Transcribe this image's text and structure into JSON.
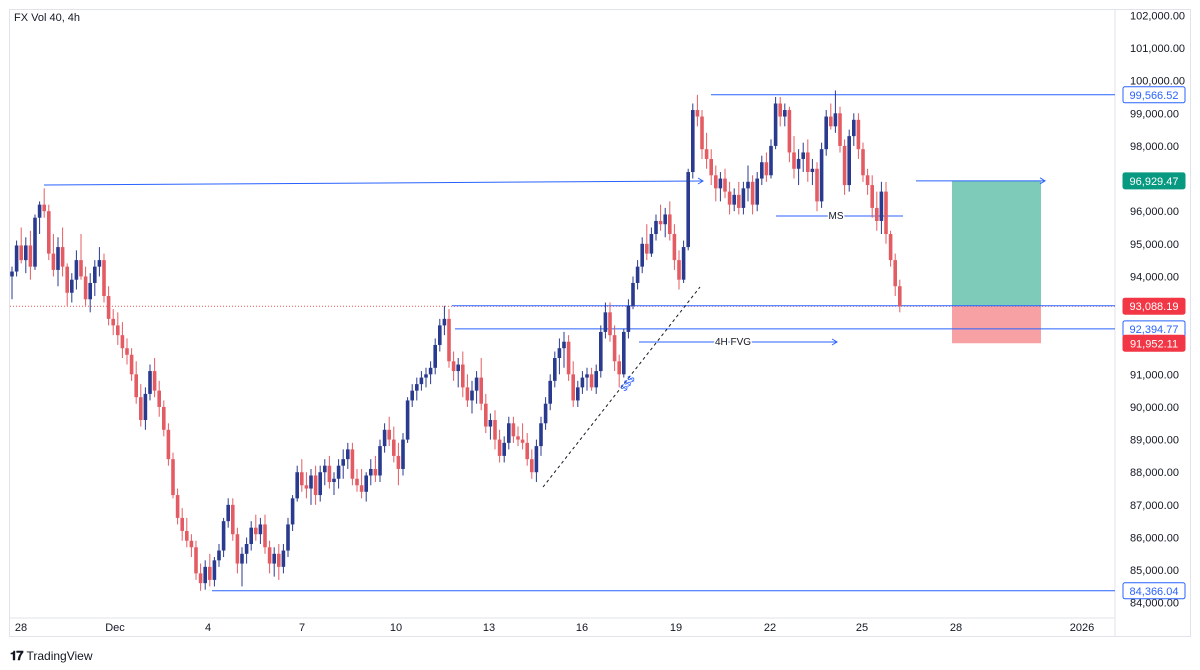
{
  "header": {
    "title": "FX Vol 40, 4h"
  },
  "branding": {
    "logo_icon": "tradingview-logo-icon",
    "label": "TradingView"
  },
  "chart_data": {
    "type": "candlestick",
    "title": "FX Vol 40, 4h",
    "ylim": [
      84000,
      102000
    ],
    "y_ticks": [
      84000,
      85000,
      86000,
      87000,
      88000,
      89000,
      90000,
      91000,
      92000,
      93000,
      94000,
      95000,
      96000,
      97000,
      98000,
      99000,
      100000,
      101000,
      102000
    ],
    "y_tick_labels": [
      "84,000.00",
      "85,000.00",
      "86,000.00",
      "87,000.00",
      "88,000.00",
      "89,000.00",
      "90,000.00",
      "91,000.00",
      "92,000.00",
      "93,000.00",
      "94,000.00",
      "95,000.00",
      "96,000.00",
      "97,000.00",
      "98,000.00",
      "99,000.00",
      "100,000.00",
      "101,000.00",
      "102,000.00"
    ],
    "x_tick_labels": [
      "28",
      "Dec",
      "4",
      "7",
      "10",
      "13",
      "16",
      "19",
      "22",
      "25",
      "28",
      "2026"
    ],
    "colors": {
      "up": "#2a3a8f",
      "down": "#e45c63",
      "hline": "#2962ff",
      "target_zone": "#7fcbba",
      "stop_zone": "#f7a1a4",
      "current_price_line": "#ef5350"
    },
    "price_tags": [
      {
        "value": 99566.52,
        "label": "99,566.52",
        "style": "blue-outline"
      },
      {
        "value": 96929.47,
        "label": "96,929.47",
        "style": "green"
      },
      {
        "value": 93088.19,
        "label": "93,088.19",
        "style": "red"
      },
      {
        "value": 92394.77,
        "label": "92,394.77",
        "style": "blue-outline"
      },
      {
        "value": 91952.11,
        "label": "91,952.11",
        "style": "red"
      },
      {
        "value": 84366.04,
        "label": "84,366.04",
        "style": "blue-outline"
      }
    ],
    "annotations": [
      {
        "text": "MS"
      },
      {
        "text": "4H FVG"
      },
      {
        "text": "$$$"
      }
    ],
    "position": {
      "entry": 93088.19,
      "target": 96929.47,
      "stop": 91952.11
    },
    "candles": [
      [
        94000,
        94300,
        93300,
        94150
      ],
      [
        94150,
        95100,
        94000,
        94950
      ],
      [
        94950,
        95500,
        94400,
        94500
      ],
      [
        94500,
        95200,
        94100,
        94950
      ],
      [
        94950,
        95400,
        93900,
        94300
      ],
      [
        94300,
        95900,
        94200,
        95800
      ],
      [
        95800,
        96300,
        95300,
        96200
      ],
      [
        96200,
        96700,
        95800,
        96000
      ],
      [
        96000,
        96200,
        94500,
        94700
      ],
      [
        94700,
        95300,
        94000,
        94200
      ],
      [
        94200,
        95200,
        93700,
        94900
      ],
      [
        94900,
        95500,
        94000,
        94300
      ],
      [
        94300,
        94400,
        93100,
        93500
      ],
      [
        93500,
        94100,
        93200,
        93900
      ],
      [
        93900,
        94800,
        93600,
        94500
      ],
      [
        94500,
        95300,
        93900,
        94000
      ],
      [
        94000,
        94300,
        93100,
        93300
      ],
      [
        93300,
        94100,
        92900,
        93800
      ],
      [
        93800,
        94500,
        93400,
        94300
      ],
      [
        94300,
        94900,
        94000,
        94500
      ],
      [
        94500,
        94700,
        93200,
        93400
      ],
      [
        93400,
        93700,
        92500,
        92700
      ],
      [
        92700,
        93000,
        92200,
        92500
      ],
      [
        92500,
        92900,
        91900,
        92200
      ],
      [
        92200,
        92600,
        91500,
        91800
      ],
      [
        91800,
        92100,
        91300,
        91600
      ],
      [
        91600,
        91800,
        90800,
        91000
      ],
      [
        91000,
        91400,
        90100,
        90300
      ],
      [
        90300,
        90700,
        89400,
        89600
      ],
      [
        89600,
        90600,
        89300,
        90400
      ],
      [
        90400,
        91300,
        90200,
        91100
      ],
      [
        91100,
        91500,
        90300,
        90500
      ],
      [
        90500,
        90800,
        89700,
        90000
      ],
      [
        90000,
        90200,
        89100,
        89300
      ],
      [
        89300,
        89500,
        88200,
        88400
      ],
      [
        88400,
        88600,
        87200,
        87300
      ],
      [
        87300,
        87500,
        86400,
        86600
      ],
      [
        86600,
        86900,
        85900,
        86200
      ],
      [
        86200,
        86600,
        85700,
        85900
      ],
      [
        85900,
        86100,
        85400,
        85700
      ],
      [
        85700,
        85900,
        84700,
        84900
      ],
      [
        84900,
        85200,
        84366,
        84600
      ],
      [
        84600,
        85300,
        84400,
        85100
      ],
      [
        85100,
        85500,
        84500,
        84700
      ],
      [
        84700,
        85400,
        84500,
        85300
      ],
      [
        85300,
        85800,
        85100,
        85600
      ],
      [
        85600,
        86600,
        85400,
        86500
      ],
      [
        86500,
        87200,
        86300,
        87000
      ],
      [
        87000,
        87200,
        85900,
        86100
      ],
      [
        86100,
        86300,
        84900,
        85200
      ],
      [
        85200,
        85700,
        84500,
        85500
      ],
      [
        85500,
        86000,
        85200,
        85800
      ],
      [
        85800,
        86500,
        85600,
        86300
      ],
      [
        86300,
        86700,
        85900,
        86100
      ],
      [
        86100,
        86600,
        85800,
        86400
      ],
      [
        86400,
        86700,
        85500,
        85700
      ],
      [
        85700,
        85900,
        84900,
        85200
      ],
      [
        85200,
        85700,
        84800,
        85500
      ],
      [
        85500,
        85800,
        84700,
        85100
      ],
      [
        85100,
        85800,
        84900,
        85600
      ],
      [
        85600,
        86600,
        85400,
        86400
      ],
      [
        86400,
        87300,
        86200,
        87200
      ],
      [
        87200,
        88200,
        87100,
        88000
      ],
      [
        88000,
        88400,
        87400,
        87600
      ],
      [
        87600,
        88000,
        87200,
        87500
      ],
      [
        87500,
        88100,
        87000,
        87900
      ],
      [
        87900,
        88200,
        87000,
        87300
      ],
      [
        87300,
        88200,
        87100,
        88000
      ],
      [
        88000,
        88400,
        87600,
        88200
      ],
      [
        88200,
        88500,
        87500,
        87700
      ],
      [
        87700,
        88000,
        87300,
        87800
      ],
      [
        87800,
        88400,
        87500,
        88200
      ],
      [
        88200,
        88700,
        87800,
        88400
      ],
      [
        88400,
        88900,
        88100,
        88700
      ],
      [
        88700,
        88900,
        87600,
        87800
      ],
      [
        87800,
        88100,
        87400,
        87600
      ],
      [
        87600,
        88100,
        87200,
        87400
      ],
      [
        87400,
        88000,
        87100,
        87900
      ],
      [
        87900,
        88400,
        87600,
        88100
      ],
      [
        88100,
        88500,
        87700,
        87900
      ],
      [
        87900,
        89000,
        87700,
        88800
      ],
      [
        88800,
        89500,
        88600,
        89300
      ],
      [
        89300,
        89700,
        88800,
        89000
      ],
      [
        89000,
        89400,
        88300,
        88500
      ],
      [
        88500,
        88900,
        87600,
        88100
      ],
      [
        88100,
        89200,
        87900,
        89000
      ],
      [
        89000,
        90300,
        88900,
        90200
      ],
      [
        90200,
        90700,
        90000,
        90500
      ],
      [
        90500,
        90900,
        90200,
        90700
      ],
      [
        90700,
        91100,
        90500,
        90900
      ],
      [
        90900,
        91200,
        90600,
        91000
      ],
      [
        91000,
        91400,
        90700,
        91200
      ],
      [
        91200,
        92100,
        91000,
        91900
      ],
      [
        91900,
        92700,
        91700,
        92500
      ],
      [
        92500,
        93100,
        92200,
        92700
      ],
      [
        92700,
        93000,
        91200,
        91400
      ],
      [
        91400,
        91700,
        90800,
        91100
      ],
      [
        91100,
        91500,
        90600,
        91300
      ],
      [
        91300,
        91700,
        90300,
        90600
      ],
      [
        90600,
        91000,
        90000,
        90200
      ],
      [
        90200,
        90800,
        89800,
        90500
      ],
      [
        90500,
        91100,
        90100,
        90900
      ],
      [
        90900,
        91500,
        89900,
        90100
      ],
      [
        90100,
        90400,
        89200,
        89400
      ],
      [
        89400,
        89800,
        89000,
        89600
      ],
      [
        89600,
        89900,
        88700,
        89000
      ],
      [
        89000,
        89300,
        88300,
        88500
      ],
      [
        88500,
        89100,
        88300,
        88900
      ],
      [
        88900,
        89700,
        88700,
        89500
      ],
      [
        89500,
        89700,
        88900,
        89100
      ],
      [
        89100,
        89400,
        88800,
        89000
      ],
      [
        89000,
        89500,
        88700,
        88900
      ],
      [
        88900,
        89200,
        88200,
        88400
      ],
      [
        88400,
        88700,
        87800,
        88000
      ],
      [
        88000,
        89000,
        87700,
        88800
      ],
      [
        88800,
        89700,
        88500,
        89500
      ],
      [
        89500,
        90300,
        89300,
        90100
      ],
      [
        90100,
        91000,
        89900,
        90800
      ],
      [
        90800,
        91700,
        90600,
        91500
      ],
      [
        91500,
        92100,
        91000,
        91800
      ],
      [
        91800,
        92300,
        91200,
        92000
      ],
      [
        92000,
        92200,
        90800,
        91000
      ],
      [
        91000,
        91400,
        90000,
        90200
      ],
      [
        90200,
        90800,
        90000,
        90600
      ],
      [
        90600,
        91100,
        90400,
        90900
      ],
      [
        90900,
        91200,
        90500,
        91000
      ],
      [
        91000,
        91200,
        90500,
        90600
      ],
      [
        90600,
        91300,
        90400,
        91100
      ],
      [
        91100,
        92500,
        90900,
        92300
      ],
      [
        92300,
        93200,
        92100,
        92900
      ],
      [
        92900,
        93200,
        92000,
        92200
      ],
      [
        92200,
        92500,
        91100,
        91400
      ],
      [
        91400,
        91600,
        90600,
        91000
      ],
      [
        91000,
        92400,
        90900,
        92300
      ],
      [
        92300,
        93300,
        92100,
        93100
      ],
      [
        93100,
        94000,
        93000,
        93800
      ],
      [
        93800,
        94500,
        93600,
        94300
      ],
      [
        94300,
        95200,
        94100,
        95000
      ],
      [
        95000,
        95600,
        94500,
        94700
      ],
      [
        94700,
        95500,
        94600,
        95300
      ],
      [
        95300,
        95900,
        95100,
        95700
      ],
      [
        95700,
        96200,
        95400,
        95600
      ],
      [
        95600,
        96100,
        95200,
        95900
      ],
      [
        95900,
        96300,
        95100,
        95300
      ],
      [
        95300,
        95600,
        94200,
        94500
      ],
      [
        94500,
        94800,
        93600,
        93900
      ],
      [
        93900,
        95100,
        93800,
        94900
      ],
      [
        94900,
        97300,
        94800,
        97200
      ],
      [
        97200,
        99300,
        97000,
        99100
      ],
      [
        99100,
        99566,
        98600,
        98900
      ],
      [
        98900,
        99100,
        97600,
        97900
      ],
      [
        97900,
        98400,
        97300,
        97600
      ],
      [
        97600,
        97900,
        96800,
        97100
      ],
      [
        97100,
        97400,
        96300,
        96700
      ],
      [
        96700,
        97200,
        96300,
        97000
      ],
      [
        97000,
        97300,
        96400,
        96600
      ],
      [
        96600,
        96900,
        95900,
        96200
      ],
      [
        96200,
        96700,
        96000,
        96500
      ],
      [
        96500,
        96900,
        95900,
        96100
      ],
      [
        96100,
        96900,
        95900,
        96700
      ],
      [
        96700,
        97400,
        96300,
        96900
      ],
      [
        96900,
        97100,
        95900,
        96200
      ],
      [
        96200,
        97200,
        96000,
        97000
      ],
      [
        97000,
        97700,
        96800,
        97500
      ],
      [
        97500,
        97800,
        96900,
        97100
      ],
      [
        97100,
        98200,
        97000,
        98000
      ],
      [
        98000,
        99500,
        97900,
        99300
      ],
      [
        99300,
        99500,
        98600,
        98900
      ],
      [
        98900,
        99300,
        98600,
        99100
      ],
      [
        99100,
        99200,
        97500,
        97800
      ],
      [
        97800,
        98300,
        97000,
        97300
      ],
      [
        97300,
        97900,
        96800,
        97600
      ],
      [
        97600,
        98100,
        97200,
        97800
      ],
      [
        97800,
        98200,
        96900,
        97200
      ],
      [
        97200,
        97600,
        96800,
        97300
      ],
      [
        97300,
        97500,
        96000,
        96300
      ],
      [
        96300,
        98100,
        96100,
        97900
      ],
      [
        97900,
        99100,
        97700,
        98900
      ],
      [
        98900,
        99300,
        98500,
        98600
      ],
      [
        98600,
        99700,
        98400,
        99000
      ],
      [
        99000,
        99200,
        97800,
        98000
      ],
      [
        98000,
        98200,
        96500,
        96800
      ],
      [
        96800,
        98500,
        96600,
        98300
      ],
      [
        98300,
        99000,
        98000,
        98800
      ],
      [
        98800,
        99000,
        97600,
        97900
      ],
      [
        97900,
        98100,
        96900,
        97100
      ],
      [
        97100,
        97300,
        96500,
        96800
      ],
      [
        96800,
        97100,
        95800,
        96100
      ],
      [
        96100,
        96600,
        95400,
        95700
      ],
      [
        95700,
        96900,
        95300,
        96600
      ],
      [
        96600,
        96900,
        95000,
        95300
      ],
      [
        95300,
        95400,
        94300,
        94500
      ],
      [
        94500,
        94700,
        93400,
        93700
      ],
      [
        93700,
        93900,
        92900,
        93088
      ]
    ]
  }
}
